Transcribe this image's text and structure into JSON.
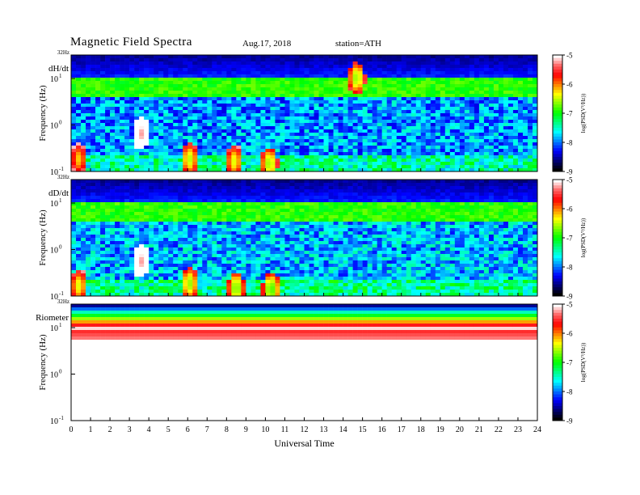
{
  "header": {
    "title": "Magnetic  Field  Spectra",
    "date": "Aug.17, 2018",
    "station": "station=ATH"
  },
  "colors": {
    "colormap": [
      "#000000",
      "#00007a",
      "#0000ff",
      "#0080ff",
      "#00ffff",
      "#00ff80",
      "#00ff00",
      "#80ff00",
      "#ffff00",
      "#ff8000",
      "#ff0000",
      "#ff6060",
      "#ffffff"
    ],
    "frame": "#000000"
  },
  "chart_data": [
    {
      "type": "heatmap",
      "panel_label": "dH/dt",
      "top_label": "32Hz",
      "ylabel": "Frequency  (Hz)",
      "yscale": "log",
      "ylim": [
        0.1,
        32
      ],
      "yticks": [
        {
          "value": 0.1,
          "base": "10",
          "exp": "-1"
        },
        {
          "value": 1,
          "base": "10",
          "exp": "0"
        },
        {
          "value": 10,
          "base": "10",
          "exp": "1"
        }
      ],
      "xlim": [
        0,
        24
      ],
      "colorbar": {
        "label": "log(PSD(V²/Hz))",
        "range": [
          -9,
          -5
        ],
        "ticks": [
          "-5",
          "-6",
          "-7",
          "-8",
          "-9"
        ]
      },
      "background_level": -8.1,
      "events": [
        {
          "t": 3.6,
          "f": 0.7,
          "level": -5.2
        },
        {
          "t": 0.4,
          "f": 0.2,
          "level": -6.2
        },
        {
          "t": 6.1,
          "f": 0.2,
          "level": -6.5
        },
        {
          "t": 8.4,
          "f": 0.18,
          "level": -6.4
        },
        {
          "t": 10.2,
          "f": 0.16,
          "level": -6.6
        },
        {
          "t": 14.7,
          "f": 11,
          "level": -6.6
        }
      ]
    },
    {
      "type": "heatmap",
      "panel_label": "dD/dt",
      "top_label": "32Hz",
      "ylabel": "Frequency  (Hz)",
      "yscale": "log",
      "ylim": [
        0.1,
        32
      ],
      "yticks": [
        {
          "value": 0.1,
          "base": "10",
          "exp": "-1"
        },
        {
          "value": 1,
          "base": "10",
          "exp": "0"
        },
        {
          "value": 10,
          "base": "10",
          "exp": "1"
        }
      ],
      "xlim": [
        0,
        24
      ],
      "colorbar": {
        "label": "log(PSD(V²/Hz))",
        "range": [
          -9,
          -5
        ],
        "ticks": [
          "-5",
          "-6",
          "-7",
          "-8",
          "-9"
        ]
      },
      "background_level": -8.0,
      "events": [
        {
          "t": 3.6,
          "f": 0.6,
          "level": -5.2
        },
        {
          "t": 0.4,
          "f": 0.18,
          "level": -6.4
        },
        {
          "t": 6.1,
          "f": 0.2,
          "level": -6.6
        },
        {
          "t": 8.5,
          "f": 0.16,
          "level": -6.7
        },
        {
          "t": 10.3,
          "f": 0.15,
          "level": -6.8
        }
      ]
    },
    {
      "type": "heatmap",
      "panel_label": "Riometer",
      "top_label": "32Hz",
      "ylabel": "Frequency  (Hz)",
      "yscale": "log",
      "ylim": [
        0.1,
        32
      ],
      "yticks": [
        {
          "value": 0.1,
          "base": "10",
          "exp": "-1"
        },
        {
          "value": 1,
          "base": "10",
          "exp": "0"
        },
        {
          "value": 10,
          "base": "10",
          "exp": "1"
        }
      ],
      "xlim": [
        0,
        24
      ],
      "xlabel": "Universal  Time",
      "xticks": [
        "0",
        "1",
        "2",
        "3",
        "4",
        "5",
        "6",
        "7",
        "8",
        "9",
        "10",
        "11",
        "12",
        "13",
        "14",
        "15",
        "16",
        "17",
        "18",
        "19",
        "20",
        "21",
        "22",
        "23",
        "24"
      ],
      "colorbar": {
        "label": "log(PSD(V²/Hz))",
        "range": [
          -9,
          -5
        ],
        "ticks": [
          "-5",
          "-6",
          "-7",
          "-8",
          "-9"
        ]
      },
      "background_level": -5.0,
      "events": []
    }
  ]
}
